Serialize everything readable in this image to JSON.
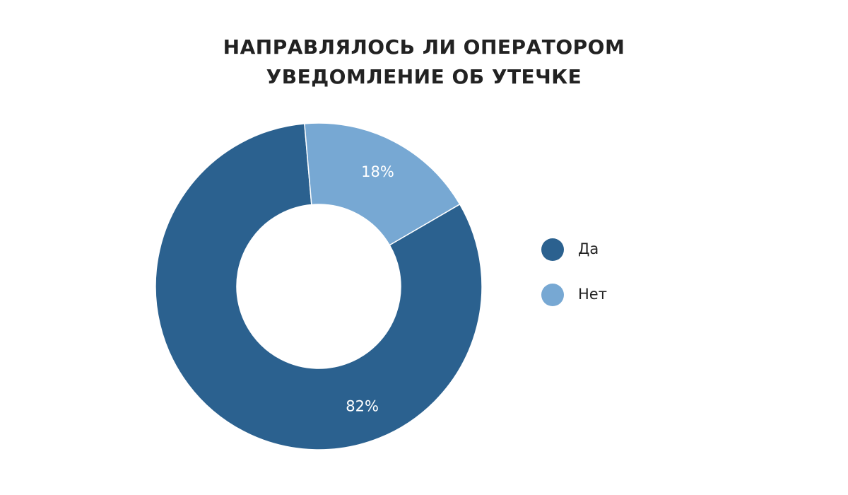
{
  "chart_data": {
    "type": "pie",
    "variant": "donut",
    "title": {
      "lines": [
        "НАПРАВЛЯЛОСЬ ЛИ ОПЕРАТОРОМ",
        "УВЕДОМЛЕНИЕ ОБ УТЕЧКЕ"
      ]
    },
    "slices": [
      {
        "label": "Да",
        "value": 82,
        "value_label": "82%",
        "color": "#2b618f"
      },
      {
        "label": "Нет",
        "value": 18,
        "value_label": "18%",
        "color": "#77a8d3"
      }
    ],
    "legend": {
      "position": "right"
    }
  }
}
